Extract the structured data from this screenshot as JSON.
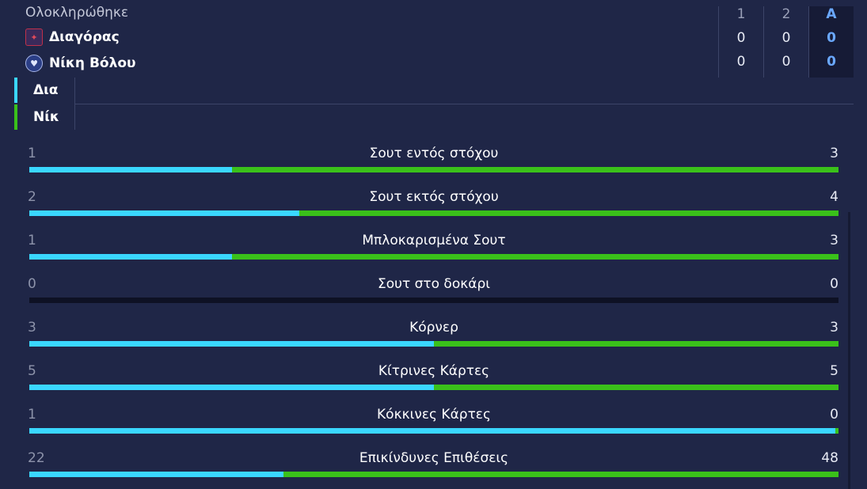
{
  "match": {
    "status": "Ολοκληρώθηκε",
    "home": {
      "name": "Διαγόρας",
      "short": "Δια",
      "crest_icon": "diagoras-crest-icon"
    },
    "away": {
      "name": "Νίκη Βόλου",
      "short": "Νίκ",
      "crest_icon": "niki-volou-crest-icon"
    }
  },
  "scoreboard": {
    "headers": [
      "1",
      "2",
      "A"
    ],
    "home": [
      "0",
      "0",
      "0"
    ],
    "away": [
      "0",
      "0",
      "0"
    ]
  },
  "colors": {
    "home": "#3ad7ff",
    "away": "#3ac11a",
    "empty": "#0e1124"
  },
  "stats": [
    {
      "label": "Σουτ εντός στόχου",
      "home": "1",
      "away": "3"
    },
    {
      "label": "Σουτ εκτός στόχου",
      "home": "2",
      "away": "4"
    },
    {
      "label": "Μπλοκαρισμένα Σουτ",
      "home": "1",
      "away": "3"
    },
    {
      "label": "Σουτ στο δοκάρι",
      "home": "0",
      "away": "0"
    },
    {
      "label": "Κόρνερ",
      "home": "3",
      "away": "3"
    },
    {
      "label": "Κίτρινες Κάρτες",
      "home": "5",
      "away": "5"
    },
    {
      "label": "Κόκκινες Κάρτες",
      "home": "1",
      "away": "0"
    },
    {
      "label": "Επικίνδυνες Επιθέσεις",
      "home": "22",
      "away": "48"
    }
  ]
}
